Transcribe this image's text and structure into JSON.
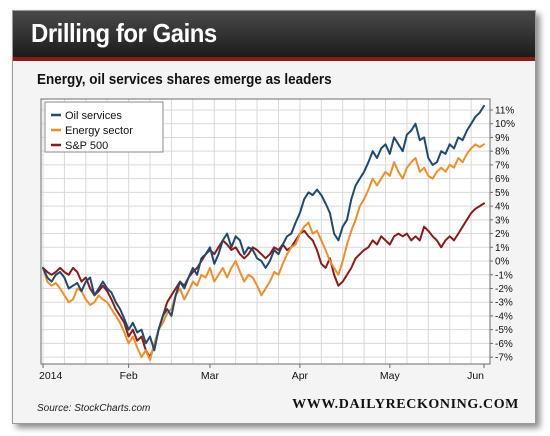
{
  "banner": {
    "title": "Drilling for Gains"
  },
  "subtitle": "Energy, oil services shares emerge as leaders",
  "source": "Source: StockCharts.com",
  "brand": "WWW.DAILYRECKONING.COM",
  "chart_data": {
    "type": "line",
    "title": "",
    "xlabel": "",
    "ylabel": "",
    "x_tick_labels": [
      "2014",
      "Feb",
      "Mar",
      "Apr",
      "May",
      "Jun"
    ],
    "x_tick_index": [
      0,
      20,
      39,
      60,
      81,
      103
    ],
    "y_ticks": [
      11,
      10,
      9,
      8,
      7,
      6,
      5,
      4,
      3,
      2,
      1,
      0,
      -1,
      -2,
      -3,
      -4,
      -5,
      -6,
      -7
    ],
    "y_tick_labels": [
      "11%",
      "10%",
      "9%",
      "8%",
      "7%",
      "6%",
      "5%",
      "4%",
      "3%",
      "2%",
      "1%",
      "0%",
      "-1%",
      "-2%",
      "-3%",
      "-4%",
      "-5%",
      "-6%",
      "-7%"
    ],
    "ylim": [
      -7.5,
      11.8
    ],
    "grid": true,
    "legend_position": "top-left",
    "series": [
      {
        "name": "Oil services",
        "color": "#1d4a6e",
        "values": [
          -0.5,
          -1.2,
          -1.5,
          -1.0,
          -0.8,
          -1.2,
          -2.0,
          -1.8,
          -1.6,
          -2.2,
          -1.5,
          -1.2,
          -2.5,
          -2.0,
          -1.5,
          -2.0,
          -2.3,
          -3.0,
          -3.5,
          -4.2,
          -5.0,
          -4.5,
          -5.2,
          -5.0,
          -6.0,
          -5.5,
          -6.5,
          -5.0,
          -4.0,
          -3.5,
          -4.0,
          -2.5,
          -1.5,
          -2.0,
          -1.2,
          -0.5,
          -1.0,
          0.2,
          0.5,
          1.0,
          -0.2,
          0.5,
          1.5,
          2.0,
          1.0,
          1.8,
          1.5,
          0.5,
          1.0,
          0.8,
          0.2,
          0.0,
          -0.5,
          0.0,
          0.8,
          0.5,
          1.2,
          1.8,
          2.0,
          2.8,
          3.5,
          4.5,
          5.0,
          4.8,
          5.2,
          4.8,
          4.2,
          3.5,
          2.0,
          1.5,
          2.5,
          3.0,
          4.5,
          5.5,
          6.0,
          6.5,
          7.2,
          8.0,
          7.5,
          8.2,
          8.5,
          7.8,
          9.0,
          8.5,
          8.0,
          9.2,
          9.5,
          10.0,
          8.8,
          9.0,
          7.5,
          7.0,
          7.2,
          8.0,
          7.8,
          8.5,
          8.2,
          9.0,
          8.8,
          9.5,
          10.0,
          10.5,
          10.8,
          11.3
        ]
      },
      {
        "name": "Energy sector",
        "color": "#ef8f2a",
        "values": [
          -0.5,
          -1.5,
          -1.8,
          -1.6,
          -2.0,
          -2.5,
          -3.0,
          -2.8,
          -2.0,
          -2.2,
          -2.8,
          -3.2,
          -3.0,
          -2.5,
          -2.8,
          -3.0,
          -3.5,
          -4.0,
          -4.5,
          -5.2,
          -6.0,
          -5.5,
          -6.3,
          -7.0,
          -6.5,
          -7.2,
          -6.0,
          -5.0,
          -4.5,
          -3.8,
          -3.5,
          -2.5,
          -2.0,
          -2.8,
          -2.2,
          -1.5,
          -1.8,
          -1.0,
          -1.2,
          -0.5,
          -1.5,
          -1.0,
          -0.5,
          -1.2,
          -0.5,
          0.0,
          -0.8,
          -1.5,
          -1.0,
          -1.2,
          -1.8,
          -2.5,
          -2.0,
          -1.5,
          -0.8,
          -1.0,
          -0.2,
          0.5,
          1.0,
          1.2,
          2.0,
          2.5,
          2.8,
          2.0,
          2.2,
          1.5,
          0.8,
          0.0,
          -0.5,
          -1.0,
          0.0,
          1.2,
          2.2,
          3.0,
          4.0,
          4.5,
          5.2,
          6.0,
          5.5,
          6.0,
          6.5,
          6.2,
          7.2,
          6.5,
          6.0,
          6.8,
          7.2,
          7.5,
          6.5,
          6.8,
          6.2,
          6.0,
          6.5,
          6.8,
          6.5,
          7.0,
          6.8,
          7.5,
          7.2,
          7.8,
          8.2,
          8.5,
          8.3,
          8.5
        ]
      },
      {
        "name": "S&P 500",
        "color": "#8b1a1a",
        "values": [
          -0.5,
          -0.8,
          -1.0,
          -0.8,
          -0.5,
          -0.8,
          -1.0,
          -0.5,
          -0.8,
          -1.5,
          -1.2,
          -2.0,
          -2.5,
          -2.2,
          -1.8,
          -2.2,
          -2.8,
          -3.5,
          -4.0,
          -4.5,
          -5.5,
          -5.0,
          -5.8,
          -5.5,
          -6.5,
          -7.0,
          -6.2,
          -5.0,
          -4.0,
          -3.0,
          -2.5,
          -2.0,
          -1.5,
          -1.8,
          -1.2,
          -0.8,
          -0.5,
          0.0,
          0.5,
          0.8,
          0.5,
          1.0,
          1.5,
          1.2,
          0.8,
          1.0,
          0.5,
          0.2,
          0.5,
          1.0,
          0.8,
          0.5,
          0.2,
          0.5,
          1.0,
          0.8,
          1.2,
          0.8,
          1.0,
          1.5,
          2.0,
          2.2,
          1.8,
          1.5,
          0.8,
          -0.2,
          -0.5,
          0.2,
          -1.0,
          -1.8,
          -1.5,
          -1.0,
          -0.5,
          0.2,
          0.5,
          0.8,
          1.0,
          1.5,
          1.2,
          1.8,
          1.5,
          1.2,
          1.8,
          2.0,
          1.8,
          2.0,
          1.5,
          1.8,
          1.5,
          2.5,
          2.2,
          1.8,
          1.5,
          1.0,
          1.5,
          1.8,
          1.5,
          2.0,
          2.5,
          3.0,
          3.5,
          3.8,
          4.0,
          4.2
        ]
      }
    ]
  }
}
